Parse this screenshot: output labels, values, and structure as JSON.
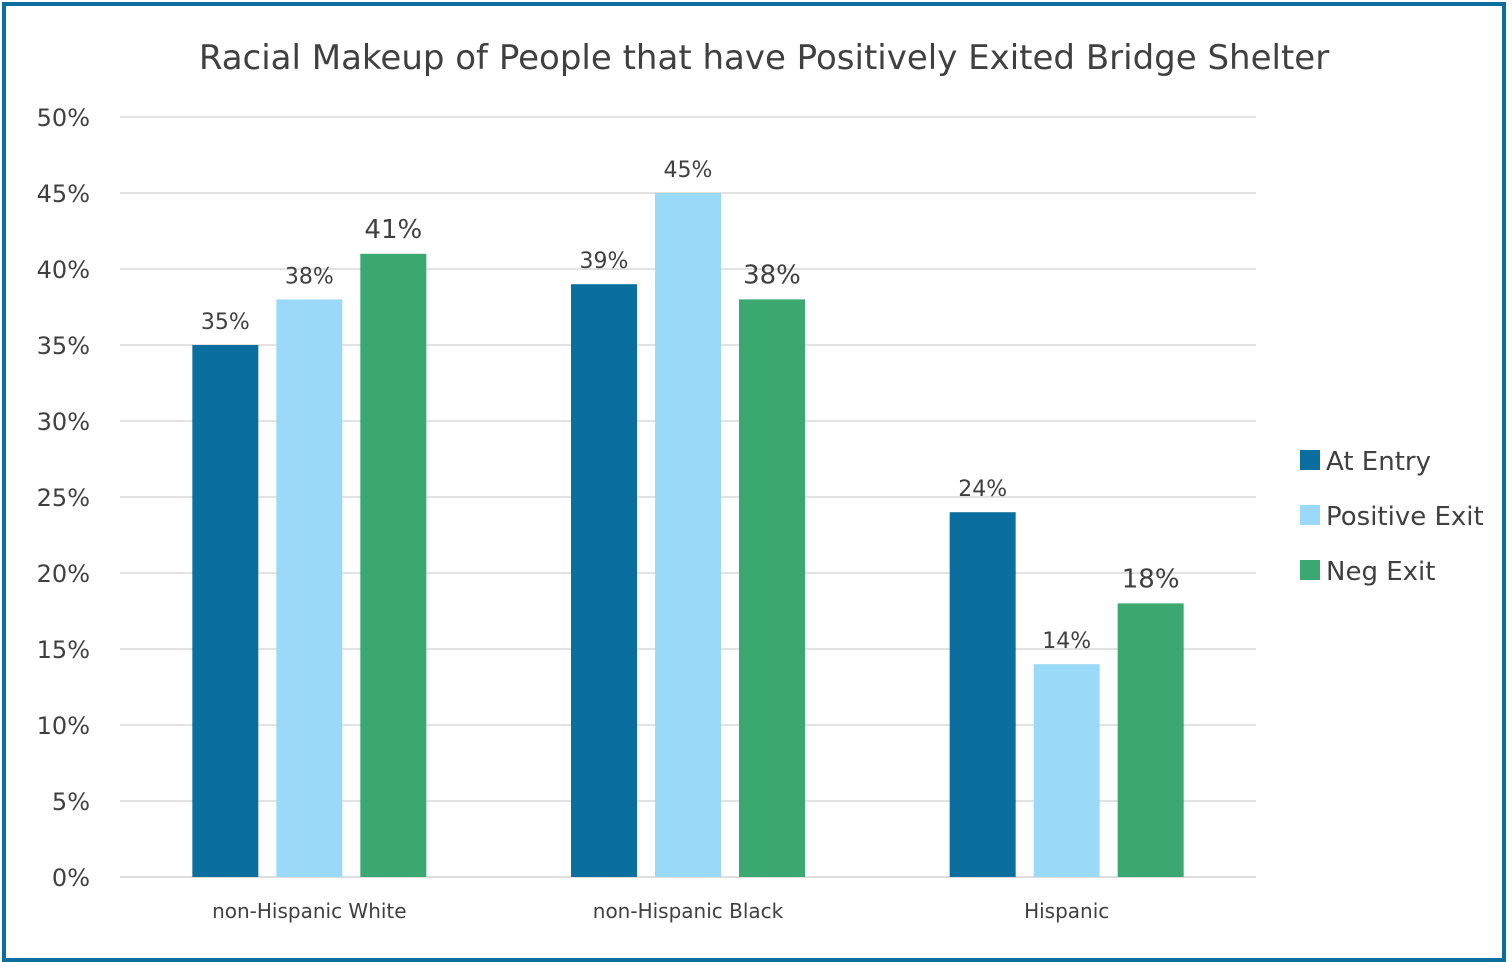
{
  "chart_data": {
    "type": "bar",
    "title": "Racial Makeup of People that have Positively Exited Bridge Shelter",
    "xlabel": "",
    "ylabel": "",
    "categories": [
      "non-Hispanic White",
      "non-Hispanic Black",
      "Hispanic"
    ],
    "series": [
      {
        "name": "At Entry",
        "values": [
          35,
          39,
          24
        ],
        "color": "#0a6f9e",
        "labels": [
          "35%",
          "39%",
          "24%"
        ]
      },
      {
        "name": "Positive Exit",
        "values": [
          38,
          45,
          14
        ],
        "color": "#9adaf8",
        "labels": [
          "38%",
          "45%",
          "14%"
        ]
      },
      {
        "name": "Neg Exit",
        "values": [
          41,
          38,
          18
        ],
        "color": "#3aa870",
        "labels": [
          "41%",
          "38%",
          "18%"
        ]
      }
    ],
    "ylim": [
      0,
      50
    ],
    "yticks": [
      0,
      5,
      10,
      15,
      20,
      25,
      30,
      35,
      40,
      45,
      50
    ],
    "ytick_labels": [
      "0%",
      "5%",
      "10%",
      "15%",
      "20%",
      "25%",
      "30%",
      "35%",
      "40%",
      "45%",
      "50%"
    ],
    "grid": true,
    "legend_position": "right",
    "gridline_color": "#d9d9d9",
    "text_color": "#404040",
    "frame_color": "#0a6f9e"
  }
}
